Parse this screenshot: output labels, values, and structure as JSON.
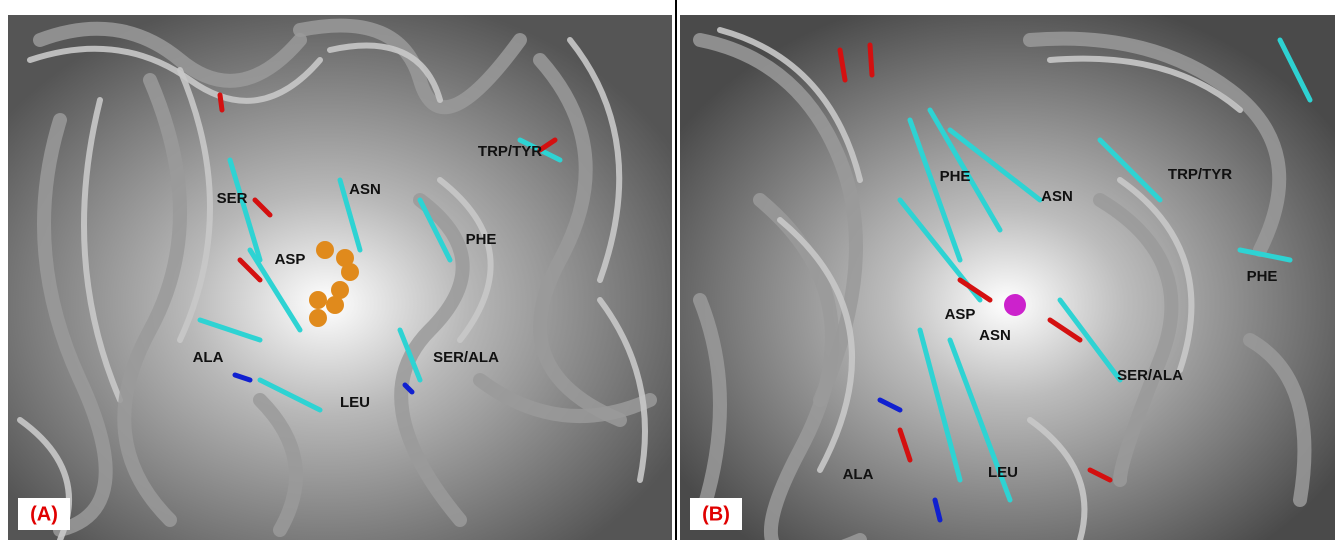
{
  "panels": [
    {
      "tag": "(A)",
      "labels": [
        "SER",
        "ASN",
        "TRP/TYR",
        "PHE",
        "ASP",
        "ALA",
        "SER/ALA",
        "LEU"
      ]
    },
    {
      "tag": "(B)",
      "labels": [
        "PHE",
        "ASN",
        "TRP/TYR",
        "PHE",
        "ASP",
        "ASN",
        "SER/ALA",
        "ALA",
        "LEU"
      ]
    }
  ]
}
